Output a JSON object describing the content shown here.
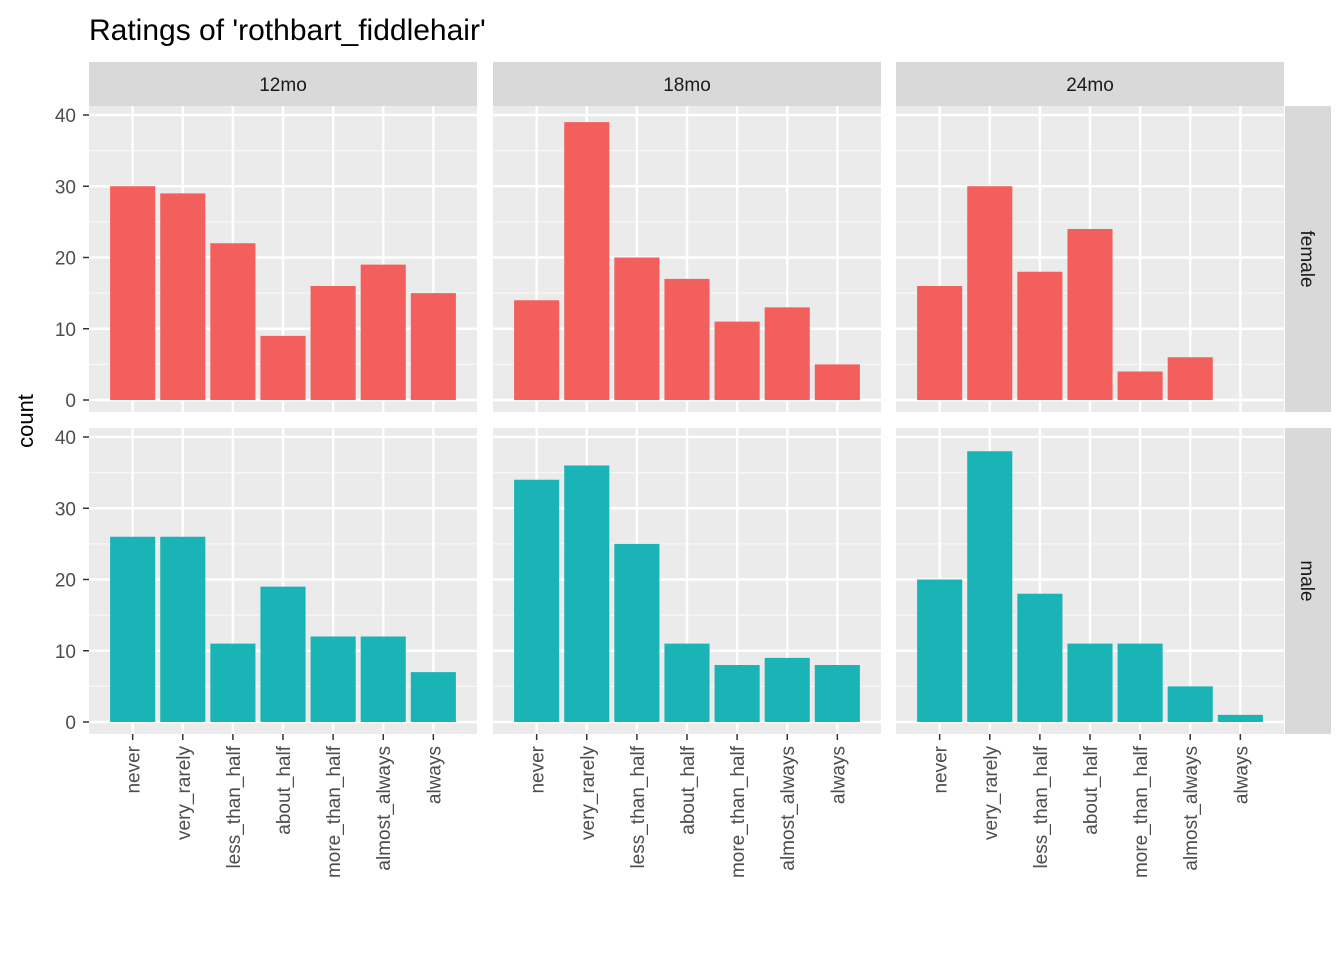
{
  "chart_data": {
    "type": "bar",
    "title": "Ratings of 'rothbart_fiddlehair'",
    "ylabel": "count",
    "xlabel": "",
    "categories": [
      "never",
      "very_rarely",
      "less_than_half",
      "about_half",
      "more_than_half",
      "almost_always",
      "always"
    ],
    "yticks": [
      0,
      10,
      20,
      30,
      40
    ],
    "ylim": [
      0,
      42
    ],
    "columns": [
      "12mo",
      "18mo",
      "24mo"
    ],
    "rows": [
      "female",
      "male"
    ],
    "colors": {
      "female": "#F25F5C",
      "male": "#1AB3B6"
    },
    "panels": [
      {
        "column": "12mo",
        "row": "female",
        "values": [
          30,
          29,
          22,
          9,
          16,
          19,
          15
        ]
      },
      {
        "column": "18mo",
        "row": "female",
        "values": [
          14,
          39,
          20,
          17,
          11,
          13,
          5
        ]
      },
      {
        "column": "24mo",
        "row": "female",
        "values": [
          16,
          30,
          18,
          24,
          4,
          6,
          0
        ]
      },
      {
        "column": "12mo",
        "row": "male",
        "values": [
          26,
          26,
          11,
          19,
          12,
          12,
          7
        ]
      },
      {
        "column": "18mo",
        "row": "male",
        "values": [
          34,
          36,
          25,
          11,
          8,
          9,
          8
        ]
      },
      {
        "column": "24mo",
        "row": "male",
        "values": [
          20,
          38,
          18,
          11,
          11,
          5,
          1
        ]
      }
    ],
    "grid": true,
    "legend": "none"
  }
}
